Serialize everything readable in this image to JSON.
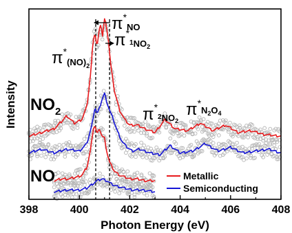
{
  "chart_data": {
    "type": "line",
    "xlabel": "Photon Energy (eV)",
    "ylabel": "Intensity",
    "xlim": [
      398,
      408
    ],
    "xticks": [
      "398",
      "400",
      "402",
      "404",
      "406",
      "408"
    ],
    "colors": {
      "metallic": "#e8191c",
      "semiconducting": "#1414d6",
      "raw": "#b4b4b4",
      "axis": "#000000"
    },
    "legend": {
      "position": "bottom-right",
      "items": [
        {
          "label": "Metallic",
          "color": "#e8191c"
        },
        {
          "label": "Semiconducting",
          "color": "#1414d6"
        }
      ]
    },
    "group_labels": {
      "no2": "NO",
      "no2_sub": "2",
      "no": "NO"
    },
    "annotations": {
      "pi_no": {
        "main": "π",
        "sup": "*",
        "sub": "NO"
      },
      "pi_no_dimer": {
        "main": "π",
        "sup": "*",
        "sub": "(NO)",
        "subsub": "2"
      },
      "pi1_no2": {
        "main": "π",
        "sup": "*",
        "sub": "1",
        "sub2": "NO",
        "subsub": "2"
      },
      "pi2_no2": {
        "main": "π",
        "sup": "*",
        "sub": "2",
        "sub2": "NO",
        "subsub": "2"
      },
      "pi_n2o4": {
        "main": "π",
        "sup": "*",
        "sub": "N",
        "subsub": "2",
        "sub2": "O",
        "subsub2": "4"
      }
    },
    "reference_lines_x": [
      400.65,
      401.2
    ],
    "series": [
      {
        "name": "Metallic",
        "group": "NO2",
        "color": "#e8191c",
        "x": [
          398.0,
          398.5,
          399.0,
          399.3,
          399.5,
          399.8,
          400.1,
          400.3,
          400.45,
          400.55,
          400.62,
          400.7,
          400.78,
          400.85,
          400.92,
          401.0,
          401.08,
          401.15,
          401.25,
          401.4,
          401.6,
          401.8,
          402.0,
          402.3,
          402.6,
          403.0,
          403.4,
          403.8,
          404.3,
          404.8,
          405.3,
          405.8,
          406.3,
          406.8,
          407.3,
          408.0
        ],
        "y": [
          0.34,
          0.36,
          0.38,
          0.42,
          0.45,
          0.41,
          0.43,
          0.5,
          0.68,
          0.86,
          0.9,
          0.82,
          0.9,
          0.95,
          0.88,
          0.97,
          0.93,
          0.86,
          0.72,
          0.58,
          0.48,
          0.43,
          0.4,
          0.4,
          0.38,
          0.36,
          0.43,
          0.38,
          0.37,
          0.41,
          0.37,
          0.4,
          0.36,
          0.37,
          0.35,
          0.34
        ]
      },
      {
        "name": "Semiconducting",
        "group": "NO2",
        "color": "#1414d6",
        "x": [
          398.0,
          398.5,
          399.0,
          399.5,
          400.0,
          400.3,
          400.5,
          400.62,
          400.7,
          400.8,
          400.9,
          401.0,
          401.1,
          401.2,
          401.35,
          401.5,
          401.7,
          401.9,
          402.1,
          402.4,
          402.8,
          403.2,
          403.6,
          404.0,
          404.5,
          405.0,
          405.5,
          406.0,
          406.5,
          407.0,
          407.5,
          408.0
        ],
        "y": [
          0.25,
          0.27,
          0.25,
          0.27,
          0.26,
          0.3,
          0.4,
          0.5,
          0.46,
          0.49,
          0.54,
          0.57,
          0.52,
          0.48,
          0.43,
          0.37,
          0.31,
          0.28,
          0.26,
          0.27,
          0.25,
          0.24,
          0.29,
          0.25,
          0.26,
          0.3,
          0.26,
          0.28,
          0.25,
          0.26,
          0.27,
          0.25
        ]
      },
      {
        "name": "Metallic",
        "group": "NO",
        "color": "#e8191c",
        "x": [
          399.0,
          399.3,
          399.6,
          399.9,
          400.1,
          400.3,
          400.45,
          400.55,
          400.62,
          400.7,
          400.8,
          400.9,
          401.0,
          401.1,
          401.2,
          401.4,
          401.6,
          401.8,
          402.0,
          402.3,
          402.6,
          403.0
        ],
        "y": [
          0.1,
          0.11,
          0.11,
          0.12,
          0.13,
          0.17,
          0.27,
          0.38,
          0.4,
          0.35,
          0.38,
          0.34,
          0.33,
          0.25,
          0.2,
          0.15,
          0.13,
          0.12,
          0.11,
          0.11,
          0.1,
          0.1
        ]
      },
      {
        "name": "Semiconducting",
        "group": "NO",
        "color": "#1414d6",
        "x": [
          399.0,
          399.5,
          400.0,
          400.3,
          400.5,
          400.7,
          400.9,
          401.1,
          401.3,
          401.5,
          401.8,
          402.1,
          402.5,
          403.0
        ],
        "y": [
          0.04,
          0.05,
          0.05,
          0.06,
          0.08,
          0.1,
          0.11,
          0.1,
          0.08,
          0.07,
          0.06,
          0.05,
          0.05,
          0.04
        ]
      }
    ]
  }
}
